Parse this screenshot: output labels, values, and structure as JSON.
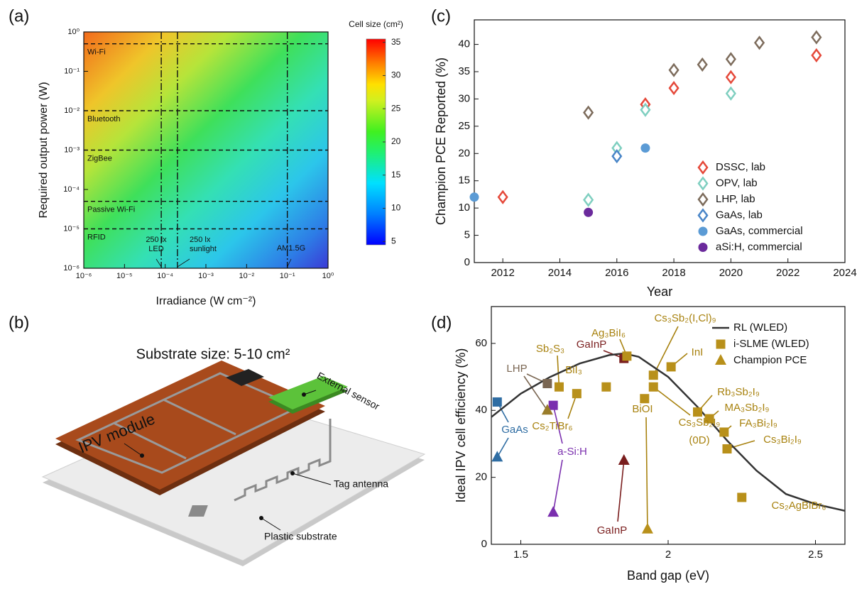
{
  "panel_labels": [
    "(a)",
    "(b)",
    "(c)",
    "(d)"
  ],
  "chart_data": [
    {
      "type": "heatmap",
      "xlabel": "Irradiance (W cm⁻²)",
      "ylabel": "Required output power (W)",
      "xlog": true,
      "ylog": true,
      "xlim": [
        1e-06,
        1
      ],
      "ylim": [
        1e-06,
        1
      ],
      "xticks": [
        {
          "value": 1e-06,
          "label": "10⁻⁶"
        },
        {
          "value": 1e-05,
          "label": "10⁻⁵"
        },
        {
          "value": 0.0001,
          "label": "10⁻⁴"
        },
        {
          "value": 0.001,
          "label": "10⁻³"
        },
        {
          "value": 0.01,
          "label": "10⁻²"
        },
        {
          "value": 0.1,
          "label": "10⁻¹"
        },
        {
          "value": 1,
          "label": "10⁰"
        }
      ],
      "yticks": [
        {
          "value": 1e-06,
          "label": "10⁻⁶"
        },
        {
          "value": 1e-05,
          "label": "10⁻⁵"
        },
        {
          "value": 0.0001,
          "label": "10⁻⁴"
        },
        {
          "value": 0.001,
          "label": "10⁻³"
        },
        {
          "value": 0.01,
          "label": "10⁻²"
        },
        {
          "value": 0.1,
          "label": "10⁻¹"
        },
        {
          "value": 1,
          "label": "10⁰"
        }
      ],
      "hlines": [
        {
          "value": 0.5,
          "label": "Wi-Fi"
        },
        {
          "value": 0.01,
          "label": "Bluetooth"
        },
        {
          "value": 0.001,
          "label": "ZigBee"
        },
        {
          "value": 5e-05,
          "label": "Passive Wi-Fi"
        },
        {
          "value": 1e-05,
          "label": "RFID"
        }
      ],
      "vlines": [
        {
          "value": 8e-05,
          "label": [
            "250 lx",
            "LED"
          ]
        },
        {
          "value": 0.0002,
          "label": [
            "250 lx",
            "sunlight"
          ]
        },
        {
          "value": 0.1,
          "label": [
            "AM1.5G"
          ]
        }
      ],
      "colorbar": {
        "title": "Cell size (cm²)",
        "lim": [
          4.5,
          35.5
        ],
        "ticks": [
          5,
          10,
          15,
          20,
          25,
          30,
          35
        ]
      }
    },
    {
      "type": "scatter",
      "xlabel": "Year",
      "ylabel": "Champion PCE Reported (%)",
      "xlim": [
        2011,
        2024
      ],
      "xticks": [
        2012,
        2014,
        2016,
        2018,
        2020,
        2022,
        2024
      ],
      "ylim": [
        0,
        44.5
      ],
      "yticks": [
        0,
        5,
        10,
        15,
        20,
        25,
        30,
        35,
        40
      ],
      "legend": "lower right",
      "series": [
        {
          "name": "DSSC, lab",
          "color": "#e5493a",
          "marker": "diamond",
          "x": [
            2012,
            2017,
            2018,
            2020,
            2023
          ],
          "values": [
            12,
            29,
            32,
            34,
            38
          ]
        },
        {
          "name": "OPV, lab",
          "color": "#7fcfc0",
          "marker": "diamond",
          "x": [
            2015,
            2016,
            2017,
            2020
          ],
          "values": [
            11.5,
            21,
            28,
            31
          ]
        },
        {
          "name": "LHP, lab",
          "color": "#7d6c5c",
          "marker": "diamond",
          "x": [
            2015,
            2018,
            2019,
            2020,
            2021,
            2023
          ],
          "values": [
            27.5,
            35.3,
            36.3,
            37.3,
            40.3,
            41.3
          ]
        },
        {
          "name": "GaAs, lab",
          "color": "#4a86c8",
          "marker": "diamond",
          "x": [
            2016
          ],
          "values": [
            19.5
          ]
        },
        {
          "name": "GaAs, commercial",
          "color": "#5b9bd5",
          "marker": "circle",
          "x": [
            2011,
            2017
          ],
          "values": [
            12,
            21
          ]
        },
        {
          "name": "aSi:H, commercial",
          "color": "#6b2a9c",
          "marker": "circle",
          "x": [
            2015
          ],
          "values": [
            9.2
          ]
        }
      ]
    },
    {
      "type": "line",
      "xlabel": "Band gap (eV)",
      "ylabel": "Ideal IPV cell efficiency (%)",
      "xlim": [
        1.4,
        2.6
      ],
      "xticks": [
        1.5,
        2,
        2.5
      ],
      "ylim": [
        0,
        71
      ],
      "yticks": [
        0,
        20,
        40,
        60
      ],
      "legend": "upper right",
      "series": [
        {
          "name": "RL (WLED)",
          "color": "#333333",
          "marker": "line",
          "x": [
            1.4,
            1.5,
            1.6,
            1.7,
            1.8,
            1.85,
            1.9,
            2.0,
            2.1,
            2.2,
            2.3,
            2.4,
            2.5,
            2.6
          ],
          "values": [
            38,
            45,
            50,
            54,
            56.5,
            57,
            56,
            50,
            41,
            31,
            22,
            15,
            12,
            10
          ]
        },
        {
          "name": "i-SLME (WLED)",
          "color": "#b8901a",
          "marker": "square",
          "x": [
            1.42,
            1.59,
            1.61,
            1.63,
            1.69,
            1.79,
            1.85,
            1.86,
            1.92,
            1.95,
            1.95,
            2.01,
            2.1,
            2.14,
            2.19,
            2.2,
            2.25
          ],
          "values": [
            42.5,
            48,
            41.5,
            47,
            45,
            47,
            55.5,
            56.2,
            43.5,
            50.5,
            47,
            53,
            39.5,
            37.5,
            33.5,
            28.5,
            14
          ],
          "point_colors": [
            "#2f6da3",
            "#7a6652",
            "#7a2fae",
            "#b8901a",
            "#b8901a",
            "#b8901a",
            "#7a1e1e",
            "#b8901a",
            "#b8901a",
            "#b8901a",
            "#b8901a",
            "#b8901a",
            "#b8901a",
            "#b8901a",
            "#b8901a",
            "#b8901a",
            "#b8901a"
          ]
        },
        {
          "name": "Champion PCE",
          "color": "#b8901a",
          "marker": "triangle",
          "x": [
            1.42,
            1.59,
            1.61,
            1.85,
            1.93
          ],
          "values": [
            26,
            40,
            9.5,
            25,
            4.5
          ],
          "point_colors": [
            "#2f6da3",
            "#9a7d2a",
            "#7a2fae",
            "#7a1e1e",
            "#b8901a"
          ]
        }
      ],
      "annotations": [
        {
          "text": "GaInP",
          "color": "#7a1e1e"
        },
        {
          "text": "Ag₃BiI₆",
          "color": "#a8820f"
        },
        {
          "text": "Cs₃Sb₂(I,Cl)₉",
          "color": "#a8820f"
        },
        {
          "text": "Sb₂S₃",
          "color": "#a8820f"
        },
        {
          "text": "LHP",
          "color": "#7a6652"
        },
        {
          "text": "BiI₃",
          "color": "#a8820f"
        },
        {
          "text": "InI",
          "color": "#a8820f"
        },
        {
          "text": "GaAs",
          "color": "#2f6da3"
        },
        {
          "text": "Cs₂TiBr₆",
          "color": "#a8820f"
        },
        {
          "text": "a-Si:H",
          "color": "#7a2fae"
        },
        {
          "text": "BiOI",
          "color": "#a8820f"
        },
        {
          "text": "Cs₃Sb₂I₉",
          "color": "#a8820f"
        },
        {
          "text": "(0D)",
          "color": "#a8820f"
        },
        {
          "text": "Rb₃Sb₂I₉",
          "color": "#a8820f"
        },
        {
          "text": "MA₃Sb₂I₉",
          "color": "#a8820f"
        },
        {
          "text": "FA₃Bi₂I₉",
          "color": "#a8820f"
        },
        {
          "text": "Cs₃Bi₂I₉",
          "color": "#a8820f"
        },
        {
          "text": "GaInP",
          "color": "#7a1e1e"
        },
        {
          "text": "Cs₂AgBiBr₆",
          "color": "#a8820f"
        }
      ]
    }
  ],
  "diagram": {
    "title": "Substrate size: 5-10 cm²",
    "labels": [
      "IPV module",
      "External sensor",
      "Tag antenna",
      "Plastic substrate"
    ]
  }
}
